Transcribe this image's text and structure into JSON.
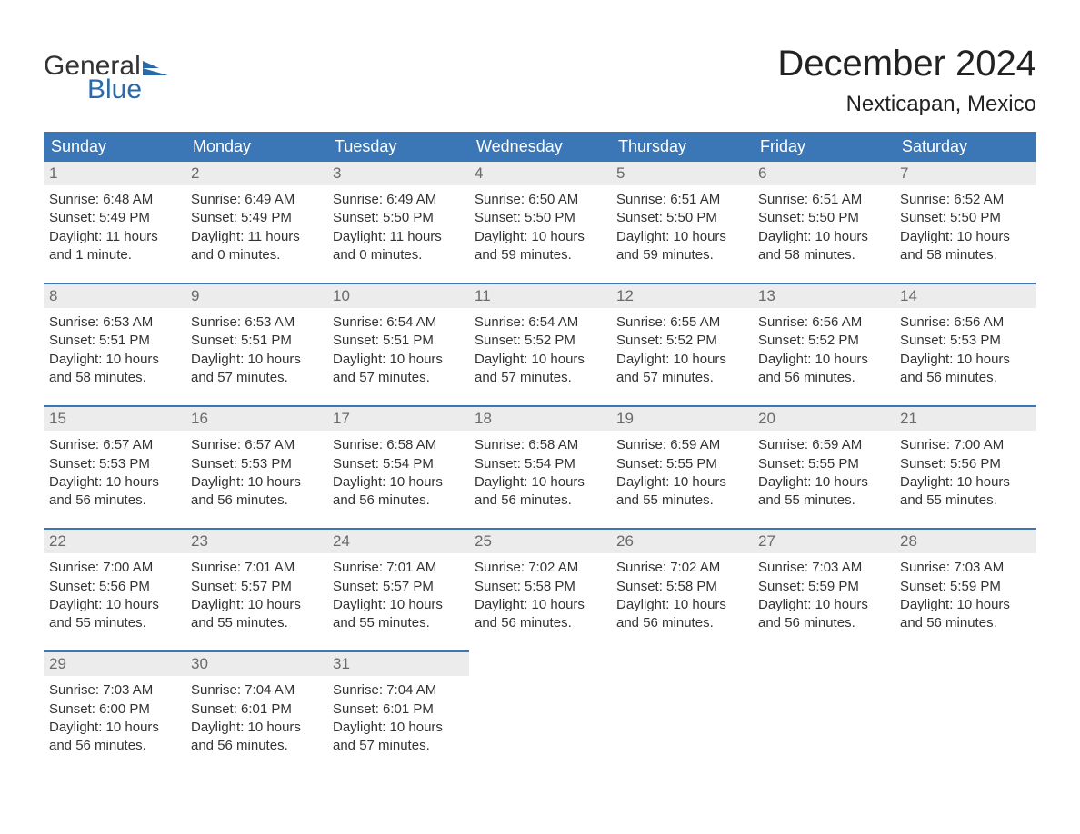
{
  "brand": {
    "word1": "General",
    "word2": "Blue",
    "mark_fill": "#2b6aaa",
    "text_dark": "#333333",
    "text_blue": "#2b6aaa"
  },
  "title": {
    "month_year": "December 2024",
    "location": "Nexticapan, Mexico"
  },
  "colors": {
    "header_bg": "#3b77b6",
    "header_text": "#ffffff",
    "daynum_bg": "#ececec",
    "daynum_text": "#6a6a6a",
    "body_text": "#333333",
    "week_border": "#3b77b6",
    "page_bg": "#ffffff"
  },
  "days_of_week": [
    "Sunday",
    "Monday",
    "Tuesday",
    "Wednesday",
    "Thursday",
    "Friday",
    "Saturday"
  ],
  "weeks": [
    [
      {
        "n": "1",
        "sunrise": "Sunrise: 6:48 AM",
        "sunset": "Sunset: 5:49 PM",
        "day1": "Daylight: 11 hours",
        "day2": "and 1 minute."
      },
      {
        "n": "2",
        "sunrise": "Sunrise: 6:49 AM",
        "sunset": "Sunset: 5:49 PM",
        "day1": "Daylight: 11 hours",
        "day2": "and 0 minutes."
      },
      {
        "n": "3",
        "sunrise": "Sunrise: 6:49 AM",
        "sunset": "Sunset: 5:50 PM",
        "day1": "Daylight: 11 hours",
        "day2": "and 0 minutes."
      },
      {
        "n": "4",
        "sunrise": "Sunrise: 6:50 AM",
        "sunset": "Sunset: 5:50 PM",
        "day1": "Daylight: 10 hours",
        "day2": "and 59 minutes."
      },
      {
        "n": "5",
        "sunrise": "Sunrise: 6:51 AM",
        "sunset": "Sunset: 5:50 PM",
        "day1": "Daylight: 10 hours",
        "day2": "and 59 minutes."
      },
      {
        "n": "6",
        "sunrise": "Sunrise: 6:51 AM",
        "sunset": "Sunset: 5:50 PM",
        "day1": "Daylight: 10 hours",
        "day2": "and 58 minutes."
      },
      {
        "n": "7",
        "sunrise": "Sunrise: 6:52 AM",
        "sunset": "Sunset: 5:50 PM",
        "day1": "Daylight: 10 hours",
        "day2": "and 58 minutes."
      }
    ],
    [
      {
        "n": "8",
        "sunrise": "Sunrise: 6:53 AM",
        "sunset": "Sunset: 5:51 PM",
        "day1": "Daylight: 10 hours",
        "day2": "and 58 minutes."
      },
      {
        "n": "9",
        "sunrise": "Sunrise: 6:53 AM",
        "sunset": "Sunset: 5:51 PM",
        "day1": "Daylight: 10 hours",
        "day2": "and 57 minutes."
      },
      {
        "n": "10",
        "sunrise": "Sunrise: 6:54 AM",
        "sunset": "Sunset: 5:51 PM",
        "day1": "Daylight: 10 hours",
        "day2": "and 57 minutes."
      },
      {
        "n": "11",
        "sunrise": "Sunrise: 6:54 AM",
        "sunset": "Sunset: 5:52 PM",
        "day1": "Daylight: 10 hours",
        "day2": "and 57 minutes."
      },
      {
        "n": "12",
        "sunrise": "Sunrise: 6:55 AM",
        "sunset": "Sunset: 5:52 PM",
        "day1": "Daylight: 10 hours",
        "day2": "and 57 minutes."
      },
      {
        "n": "13",
        "sunrise": "Sunrise: 6:56 AM",
        "sunset": "Sunset: 5:52 PM",
        "day1": "Daylight: 10 hours",
        "day2": "and 56 minutes."
      },
      {
        "n": "14",
        "sunrise": "Sunrise: 6:56 AM",
        "sunset": "Sunset: 5:53 PM",
        "day1": "Daylight: 10 hours",
        "day2": "and 56 minutes."
      }
    ],
    [
      {
        "n": "15",
        "sunrise": "Sunrise: 6:57 AM",
        "sunset": "Sunset: 5:53 PM",
        "day1": "Daylight: 10 hours",
        "day2": "and 56 minutes."
      },
      {
        "n": "16",
        "sunrise": "Sunrise: 6:57 AM",
        "sunset": "Sunset: 5:53 PM",
        "day1": "Daylight: 10 hours",
        "day2": "and 56 minutes."
      },
      {
        "n": "17",
        "sunrise": "Sunrise: 6:58 AM",
        "sunset": "Sunset: 5:54 PM",
        "day1": "Daylight: 10 hours",
        "day2": "and 56 minutes."
      },
      {
        "n": "18",
        "sunrise": "Sunrise: 6:58 AM",
        "sunset": "Sunset: 5:54 PM",
        "day1": "Daylight: 10 hours",
        "day2": "and 56 minutes."
      },
      {
        "n": "19",
        "sunrise": "Sunrise: 6:59 AM",
        "sunset": "Sunset: 5:55 PM",
        "day1": "Daylight: 10 hours",
        "day2": "and 55 minutes."
      },
      {
        "n": "20",
        "sunrise": "Sunrise: 6:59 AM",
        "sunset": "Sunset: 5:55 PM",
        "day1": "Daylight: 10 hours",
        "day2": "and 55 minutes."
      },
      {
        "n": "21",
        "sunrise": "Sunrise: 7:00 AM",
        "sunset": "Sunset: 5:56 PM",
        "day1": "Daylight: 10 hours",
        "day2": "and 55 minutes."
      }
    ],
    [
      {
        "n": "22",
        "sunrise": "Sunrise: 7:00 AM",
        "sunset": "Sunset: 5:56 PM",
        "day1": "Daylight: 10 hours",
        "day2": "and 55 minutes."
      },
      {
        "n": "23",
        "sunrise": "Sunrise: 7:01 AM",
        "sunset": "Sunset: 5:57 PM",
        "day1": "Daylight: 10 hours",
        "day2": "and 55 minutes."
      },
      {
        "n": "24",
        "sunrise": "Sunrise: 7:01 AM",
        "sunset": "Sunset: 5:57 PM",
        "day1": "Daylight: 10 hours",
        "day2": "and 55 minutes."
      },
      {
        "n": "25",
        "sunrise": "Sunrise: 7:02 AM",
        "sunset": "Sunset: 5:58 PM",
        "day1": "Daylight: 10 hours",
        "day2": "and 56 minutes."
      },
      {
        "n": "26",
        "sunrise": "Sunrise: 7:02 AM",
        "sunset": "Sunset: 5:58 PM",
        "day1": "Daylight: 10 hours",
        "day2": "and 56 minutes."
      },
      {
        "n": "27",
        "sunrise": "Sunrise: 7:03 AM",
        "sunset": "Sunset: 5:59 PM",
        "day1": "Daylight: 10 hours",
        "day2": "and 56 minutes."
      },
      {
        "n": "28",
        "sunrise": "Sunrise: 7:03 AM",
        "sunset": "Sunset: 5:59 PM",
        "day1": "Daylight: 10 hours",
        "day2": "and 56 minutes."
      }
    ],
    [
      {
        "n": "29",
        "sunrise": "Sunrise: 7:03 AM",
        "sunset": "Sunset: 6:00 PM",
        "day1": "Daylight: 10 hours",
        "day2": "and 56 minutes."
      },
      {
        "n": "30",
        "sunrise": "Sunrise: 7:04 AM",
        "sunset": "Sunset: 6:01 PM",
        "day1": "Daylight: 10 hours",
        "day2": "and 56 minutes."
      },
      {
        "n": "31",
        "sunrise": "Sunrise: 7:04 AM",
        "sunset": "Sunset: 6:01 PM",
        "day1": "Daylight: 10 hours",
        "day2": "and 57 minutes."
      },
      null,
      null,
      null,
      null
    ]
  ]
}
